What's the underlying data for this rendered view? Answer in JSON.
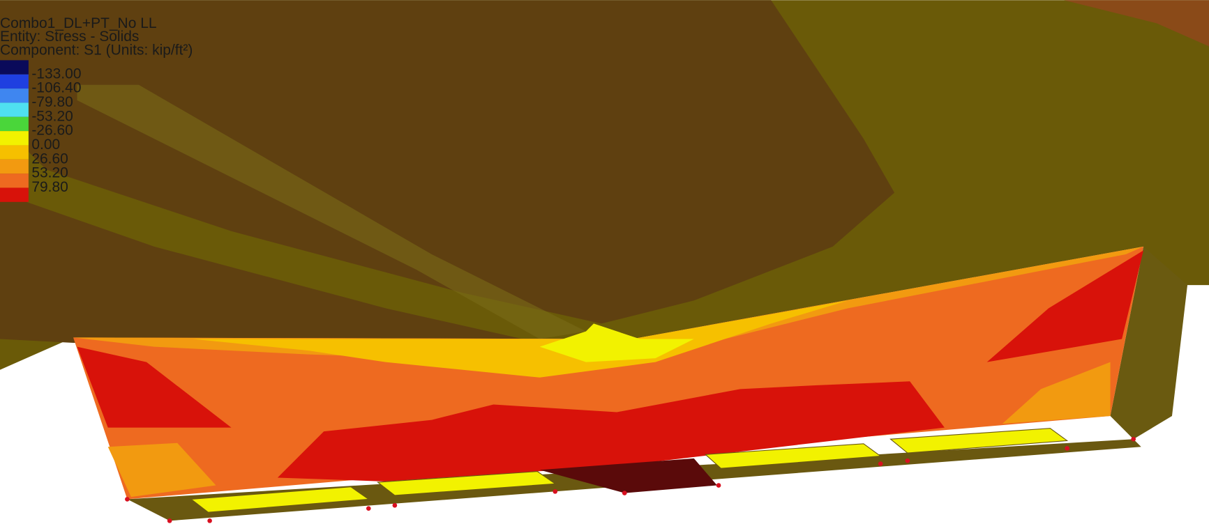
{
  "header": {
    "lines": [
      "Combo1_DL+PT_No LL",
      "Entity: Stress - Solids",
      "Component: S1 (Units: kip/ft²)"
    ]
  },
  "legend": {
    "labels": [
      "-133.00",
      "-106.40",
      "-79.80",
      "-53.20",
      "-26.60",
      "0.00",
      "26.60",
      "53.20",
      "79.80"
    ],
    "colors": [
      "#0a0a5a",
      "#1f3fe0",
      "#3f86f0",
      "#4fe0f0",
      "#4ad63a",
      "#f2f200",
      "#f6c000",
      "#f29a10",
      "#ee6a20",
      "#d8120a"
    ]
  }
}
